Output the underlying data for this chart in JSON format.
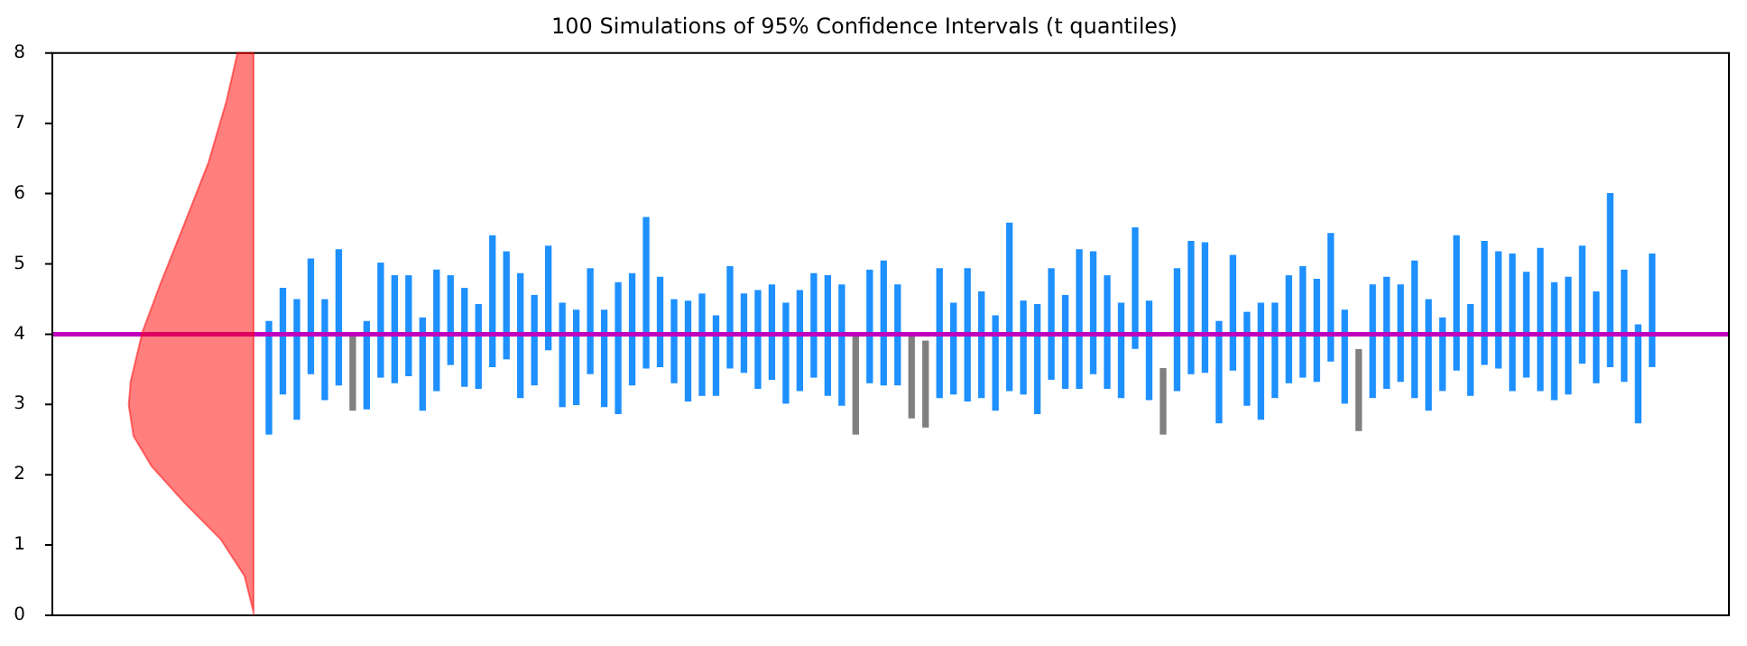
{
  "chart_data": {
    "type": "bar",
    "title": "100 Simulations of 95% Confidence Intervals (t quantiles)",
    "categories": [
      null,
      null,
      null,
      null,
      null,
      null,
      null,
      null,
      null,
      null,
      null,
      null,
      null,
      null,
      null,
      null,
      null,
      null,
      null,
      null,
      null,
      null,
      null,
      null,
      null,
      null,
      null,
      null,
      null,
      null,
      null,
      null,
      null,
      null,
      null,
      null,
      null,
      null,
      null,
      null,
      null,
      null,
      null,
      null,
      null,
      null,
      null,
      null,
      null,
      null,
      null,
      null,
      null,
      null,
      null,
      null,
      null,
      null,
      null,
      null,
      null,
      null,
      null,
      null,
      null,
      null,
      null,
      null,
      null,
      null,
      null,
      null,
      null,
      null,
      null,
      null,
      null,
      null,
      null,
      null,
      null,
      null,
      null,
      null,
      null,
      null,
      null,
      null,
      null,
      null,
      null,
      null,
      null,
      null,
      null,
      null,
      null,
      null,
      null,
      null,
      null,
      null,
      null,
      null,
      null,
      null,
      null,
      null,
      null,
      null,
      null,
      null,
      null,
      null,
      null,
      null,
      null,
      null,
      null,
      null
    ],
    "base": [
      null,
      null,
      null,
      null,
      null,
      null,
      null,
      null,
      null,
      null,
      null,
      null,
      null,
      null,
      null,
      2.58,
      3.15,
      2.79,
      3.44,
      3.07,
      3.28,
      2.92,
      2.94,
      3.39,
      3.31,
      3.41,
      2.92,
      3.2,
      3.57,
      3.26,
      3.23,
      3.54,
      3.65,
      3.1,
      3.28,
      3.78,
      2.97,
      3.0,
      3.44,
      2.97,
      2.87,
      3.28,
      3.52,
      3.54,
      3.31,
      3.05,
      3.13,
      3.13,
      3.52,
      3.46,
      3.23,
      3.36,
      3.02,
      3.2,
      3.39,
      3.13,
      2.99,
      2.58,
      3.31,
      3.28,
      3.28,
      2.81,
      2.68,
      3.1,
      3.15,
      3.05,
      3.1,
      2.92,
      3.2,
      3.15,
      2.87,
      3.36,
      3.23,
      3.23,
      3.44,
      3.23,
      3.1,
      3.8,
      3.07,
      2.58,
      3.2,
      3.44,
      3.46,
      2.74,
      3.49,
      2.99,
      2.79,
      3.1,
      3.31,
      3.39,
      3.33,
      3.62,
      3.02,
      2.63,
      3.1,
      3.23,
      3.33,
      3.1,
      2.92,
      3.2,
      3.49,
      3.13,
      3.57,
      3.52,
      3.2,
      3.39,
      3.2,
      3.07,
      3.15,
      3.59,
      3.31,
      3.54,
      3.33,
      2.74,
      3.54,
      null,
      null,
      null,
      null,
      null
    ],
    "values": [
      null,
      null,
      null,
      null,
      null,
      null,
      null,
      null,
      null,
      null,
      null,
      null,
      null,
      null,
      null,
      1.6,
      1.5,
      1.7,
      1.63,
      1.42,
      1.92,
      1.06,
      1.24,
      1.62,
      1.52,
      1.42,
      1.31,
      1.71,
      1.26,
      1.39,
      1.19,
      1.86,
      1.52,
      1.76,
      1.27,
      1.47,
      1.47,
      1.34,
      1.49,
      1.37,
      1.86,
      1.58,
      2.14,
      1.27,
      1.18,
      1.42,
      1.44,
      1.13,
      1.44,
      1.11,
      1.39,
      1.34,
      1.42,
      1.42,
      1.47,
      1.7,
      1.71,
      1.4,
      1.6,
      1.76,
      1.42,
      1.17,
      1.22,
      1.83,
      1.29,
      1.88,
      1.5,
      1.34,
      2.38,
      1.32,
      1.55,
      1.57,
      1.32,
      1.97,
      1.73,
      1.6,
      1.34,
      1.71,
      1.4,
      0.93,
      1.73,
      1.88,
      1.84,
      1.44,
      1.63,
      1.32,
      1.65,
      1.34,
      1.52,
      1.57,
      1.45,
      1.81,
      1.32,
      1.15,
      1.6,
      1.58,
      1.37,
      1.94,
      1.57,
      1.03,
      1.91,
      1.29,
      1.75,
      1.65,
      1.94,
      1.49,
      2.02,
      1.66,
      1.66,
      1.66,
      1.29,
      2.46,
      1.58,
      1.39,
      1.6,
      null,
      null,
      null,
      null,
      null
    ],
    "colors": [
      null,
      null,
      null,
      null,
      null,
      null,
      null,
      null,
      null,
      null,
      null,
      null,
      null,
      null,
      null,
      "#1e90ff",
      "#1e90ff",
      "#1e90ff",
      "#1e90ff",
      "#1e90ff",
      "#1e90ff",
      "#808080",
      "#1e90ff",
      "#1e90ff",
      "#1e90ff",
      "#1e90ff",
      "#1e90ff",
      "#1e90ff",
      "#1e90ff",
      "#1e90ff",
      "#1e90ff",
      "#1e90ff",
      "#1e90ff",
      "#1e90ff",
      "#1e90ff",
      "#1e90ff",
      "#1e90ff",
      "#1e90ff",
      "#1e90ff",
      "#1e90ff",
      "#1e90ff",
      "#1e90ff",
      "#1e90ff",
      "#1e90ff",
      "#1e90ff",
      "#1e90ff",
      "#1e90ff",
      "#1e90ff",
      "#1e90ff",
      "#1e90ff",
      "#1e90ff",
      "#1e90ff",
      "#1e90ff",
      "#1e90ff",
      "#1e90ff",
      "#1e90ff",
      "#1e90ff",
      "#808080",
      "#1e90ff",
      "#1e90ff",
      "#1e90ff",
      "#808080",
      "#808080",
      "#1e90ff",
      "#1e90ff",
      "#1e90ff",
      "#1e90ff",
      "#1e90ff",
      "#1e90ff",
      "#1e90ff",
      "#1e90ff",
      "#1e90ff",
      "#1e90ff",
      "#1e90ff",
      "#1e90ff",
      "#1e90ff",
      "#1e90ff",
      "#1e90ff",
      "#1e90ff",
      "#808080",
      "#1e90ff",
      "#1e90ff",
      "#1e90ff",
      "#1e90ff",
      "#1e90ff",
      "#1e90ff",
      "#1e90ff",
      "#1e90ff",
      "#1e90ff",
      "#1e90ff",
      "#1e90ff",
      "#1e90ff",
      "#1e90ff",
      "#808080",
      "#1e90ff",
      "#1e90ff",
      "#1e90ff",
      "#1e90ff",
      "#1e90ff",
      "#1e90ff",
      "#1e90ff",
      "#1e90ff",
      "#1e90ff",
      "#1e90ff",
      "#1e90ff",
      "#1e90ff",
      "#1e90ff",
      "#1e90ff",
      "#1e90ff",
      "#1e90ff",
      "#1e90ff",
      "#1e90ff",
      "#1e90ff",
      "#1e90ff",
      "#1e90ff",
      null,
      null,
      null,
      null,
      null
    ],
    "ylim": [
      0,
      8
    ],
    "yticks": [
      0,
      1,
      2,
      3,
      4,
      5,
      6,
      7,
      8
    ],
    "tick_labels": "y",
    "ref_lines": [
      {
        "axis": "y",
        "value": 4,
        "color": "#bf00bf"
      }
    ]
  }
}
